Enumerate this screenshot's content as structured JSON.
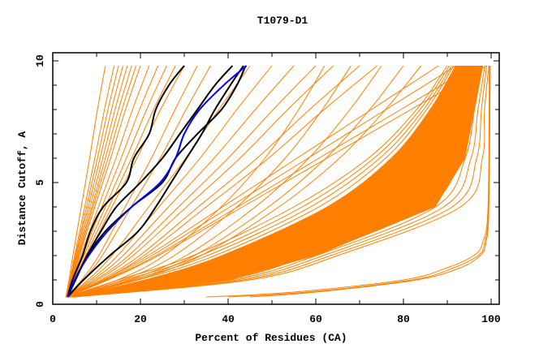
{
  "chart_data": {
    "type": "line",
    "title": "T1079-D1",
    "xlabel": "Percent of Residues (CA)",
    "ylabel": "Distance Cutoff, A",
    "xlim": [
      0,
      100
    ],
    "ylim": [
      0,
      10
    ],
    "xticks": [
      0,
      20,
      40,
      60,
      80,
      100
    ],
    "yticks": [
      0,
      5,
      10
    ],
    "grid": false,
    "legend": "none",
    "colors": {
      "models": "#ff8000",
      "highlight_black": "#000000",
      "highlight_blue": "#0000ff"
    },
    "cutoffs": [
      0.3,
      1,
      2,
      4,
      6,
      8,
      9.8
    ],
    "model_series": [
      {
        "x": [
          3,
          3.7,
          4.6,
          6.5,
          8.4,
          10.2,
          12
        ]
      },
      {
        "x": [
          3,
          3.9,
          5,
          7.3,
          9.6,
          11.8,
          14
        ]
      },
      {
        "x": [
          3,
          4,
          5.2,
          7.7,
          10.2,
          12.6,
          15
        ]
      },
      {
        "x": [
          3,
          4,
          5.3,
          8.1,
          10.8,
          13.4,
          16
        ]
      },
      {
        "x": [
          3,
          4.1,
          5.5,
          8.5,
          11.4,
          14.2,
          17
        ]
      },
      {
        "x": [
          3,
          4.2,
          5.7,
          8.9,
          12,
          15,
          18
        ]
      },
      {
        "x": [
          3,
          4.3,
          5.9,
          9.2,
          12.6,
          15.8,
          19
        ]
      },
      {
        "x": [
          3,
          4.4,
          6.1,
          9.6,
          13.2,
          16.6,
          20
        ]
      },
      {
        "x": [
          3,
          4.5,
          6.4,
          10.4,
          14.4,
          18.2,
          22
        ]
      },
      {
        "x": [
          3,
          4.7,
          6.8,
          11.2,
          15.6,
          19.8,
          24
        ]
      },
      {
        "x": [
          3,
          4.8,
          7.1,
          12,
          16.8,
          21.4,
          26
        ]
      },
      {
        "x": [
          3,
          5,
          7.5,
          12.8,
          18,
          23,
          28
        ]
      },
      {
        "x": [
          3,
          5.2,
          7.9,
          13.5,
          19.2,
          24.6,
          30
        ]
      },
      {
        "x": [
          3,
          6.6,
          10.5,
          16.5,
          22.5,
          27.9,
          33
        ]
      },
      {
        "x": [
          3,
          7,
          11.3,
          17.9,
          24.5,
          30.4,
          36
        ]
      },
      {
        "x": [
          3,
          8,
          13.5,
          21.9,
          30.3,
          37.9,
          45
        ]
      },
      {
        "x": [
          3,
          8.6,
          14.8,
          24.2,
          33.6,
          42,
          50
        ]
      },
      {
        "x": [
          3,
          9.2,
          16,
          26.4,
          36.8,
          46.2,
          55
        ]
      },
      {
        "x": [
          3,
          9.8,
          17.3,
          28.7,
          40,
          50.3,
          60
        ]
      },
      {
        "x": [
          3,
          10.3,
          18.3,
          30.5,
          42.7,
          53.6,
          64
        ]
      },
      {
        "x": [
          3,
          11,
          19.8,
          33.2,
          46.6,
          58.6,
          70
        ]
      },
      {
        "x": [
          3,
          11.5,
          20.8,
          35,
          49.2,
          61.9,
          74
        ]
      },
      {
        "x": [
          3,
          14.8,
          25.4,
          38.4,
          48.4,
          56.1,
          62
        ]
      },
      {
        "x": [
          3,
          16,
          27.7,
          42,
          53,
          61.5,
          68
        ]
      },
      {
        "x": [
          3,
          17.4,
          30.4,
          46.2,
          58.4,
          67.8,
          75
        ]
      },
      {
        "x": [
          3,
          18.4,
          32.3,
          49.2,
          62.3,
          72.3,
          80
        ]
      },
      {
        "x": [
          3,
          19.2,
          33.8,
          51.6,
          65.4,
          75.9,
          84
        ]
      },
      {
        "x": [
          3,
          11.5,
          21.7,
          38.7,
          55.7,
          72.7,
          88
        ]
      },
      {
        "x": [
          3,
          11.9,
          22.6,
          40.4,
          58.2,
          76,
          92
        ]
      },
      {
        "x": [
          3,
          12.3,
          23.5,
          42.2,
          60.7,
          79.4,
          96
        ]
      },
      {
        "x": [
          3,
          12.6,
          24.1,
          43.3,
          62.5,
          81.7,
          99
        ]
      },
      {
        "x": [
          3,
          15,
          32,
          55,
          72,
          83,
          90
        ]
      },
      {
        "x": [
          3.1,
          16.5,
          33.7,
          56.9,
          73.3,
          83.8,
          90.5
        ]
      },
      {
        "x": [
          3.2,
          18,
          35.3,
          58.8,
          74.6,
          84.6,
          91
        ]
      },
      {
        "x": [
          3.3,
          19.5,
          37,
          60.7,
          75.9,
          85.3,
          91.4
        ]
      },
      {
        "x": [
          3.4,
          21,
          38.6,
          62.6,
          77.2,
          86.1,
          91.9
        ]
      },
      {
        "x": [
          3.5,
          22.5,
          40.3,
          64.5,
          78.5,
          86.9,
          92.4
        ]
      },
      {
        "x": [
          3.6,
          24,
          41.9,
          66.4,
          79.8,
          87.7,
          92.9
        ]
      },
      {
        "x": [
          3.7,
          25.5,
          43.6,
          68.3,
          81.1,
          88.4,
          93.3
        ]
      },
      {
        "x": [
          3.8,
          27,
          45.2,
          70.2,
          82.4,
          89.2,
          93.8
        ]
      },
      {
        "x": [
          3.9,
          28.5,
          46.9,
          72.1,
          83.7,
          90,
          94.3
        ]
      },
      {
        "x": [
          4,
          30,
          48.5,
          74,
          85,
          90.8,
          94.8
        ]
      },
      {
        "x": [
          4.1,
          31.5,
          50.2,
          75.9,
          86.3,
          91.5,
          95.2
        ]
      },
      {
        "x": [
          4.2,
          33,
          51.8,
          77.8,
          87.6,
          92.3,
          95.7
        ]
      },
      {
        "x": [
          4.3,
          34.5,
          53.5,
          79.7,
          88.9,
          93.1,
          96.2
        ]
      },
      {
        "x": [
          4.4,
          36,
          55.1,
          81.6,
          90.2,
          93.9,
          96.7
        ]
      },
      {
        "x": [
          4.5,
          37.5,
          56.8,
          83.5,
          91.5,
          94.6,
          97.1
        ]
      },
      {
        "x": [
          4.6,
          39,
          58.4,
          85.4,
          92.8,
          95.4,
          97.6
        ]
      },
      {
        "x": [
          4.7,
          40.5,
          60.1,
          87.3,
          94.1,
          96.2,
          98.1
        ]
      },
      {
        "x": [
          4.8,
          42,
          61.7,
          89.2,
          95.4,
          97,
          98.6
        ]
      },
      {
        "x": [
          4.9,
          43.5,
          63.4,
          91.1,
          96.7,
          97.8,
          99
        ]
      },
      {
        "x": [
          5,
          45,
          65,
          93,
          98,
          98.5,
          99.5
        ]
      },
      {
        "y": [
          0.3,
          0.5,
          1,
          1.5,
          2,
          2.5,
          4,
          9.8
        ],
        "x": [
          35,
          55,
          80,
          90,
          96,
          98,
          99.3,
          99.6
        ]
      },
      {
        "y": [
          0.3,
          0.5,
          1,
          1.5,
          2,
          2.5,
          4,
          9.8
        ],
        "x": [
          40,
          58,
          82,
          91.5,
          97,
          98.5,
          99.4,
          99.7
        ]
      },
      {
        "y": [
          0.3,
          0.5,
          1,
          1.5,
          2,
          2.5,
          4,
          9.8
        ],
        "x": [
          45,
          60,
          83,
          93,
          97.5,
          98.8,
          99.5,
          99.8
        ]
      }
    ],
    "highlight_cutoffs": [
      0.3,
      1,
      2,
      3,
      4,
      5,
      6,
      7,
      8,
      9,
      9.8
    ],
    "highlight_series": [
      {
        "color": "black",
        "x": [
          3.4,
          4.5,
          6.8,
          8.6,
          11.5,
          16.8,
          18.5,
          22,
          23.5,
          26.5,
          30
        ]
      },
      {
        "color": "black",
        "x": [
          3.4,
          5.2,
          7.8,
          11,
          14.5,
          20,
          25,
          29,
          33,
          37,
          41
        ]
      },
      {
        "color": "black",
        "x": [
          3.4,
          5,
          8,
          12,
          18,
          25,
          28,
          33,
          38.5,
          42,
          44
        ]
      },
      {
        "color": "black",
        "x": [
          3.4,
          7,
          13,
          19.5,
          23.5,
          27,
          30.5,
          34,
          37,
          40.5,
          43.5
        ]
      },
      {
        "color": "blue",
        "x": [
          3.4,
          5,
          8.2,
          12.5,
          18,
          24.5,
          28,
          30,
          33.5,
          39,
          44.2
        ]
      }
    ]
  }
}
